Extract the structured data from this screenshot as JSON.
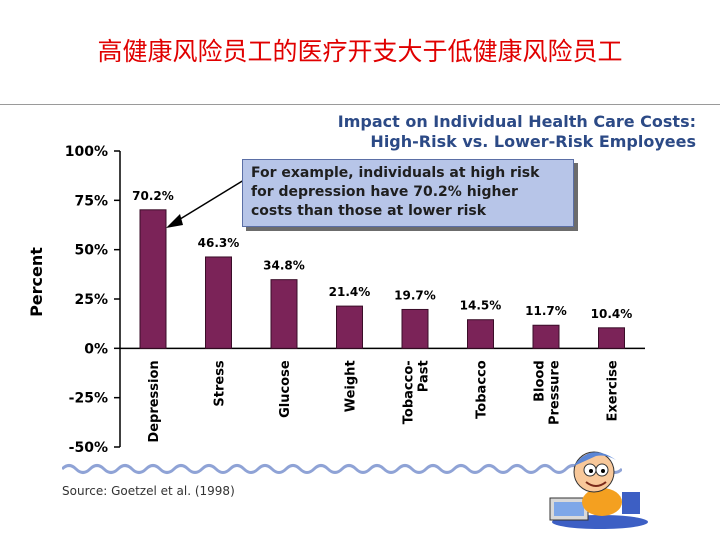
{
  "slide": {
    "title": "高健康风险员工的医疗开支大于低健康风险员工"
  },
  "chart_data": {
    "type": "bar",
    "title_lines": [
      "Impact on Individual Health Care Costs:",
      "High-Risk vs. Lower-Risk Employees"
    ],
    "ylabel": "Percent",
    "xlabel": "",
    "ylim": [
      -50,
      100
    ],
    "yticks": [
      100,
      75,
      50,
      25,
      0,
      -25,
      -50
    ],
    "ytick_labels": [
      "100%",
      "75%",
      "50%",
      "25%",
      "0%",
      "-25%",
      "-50%"
    ],
    "categories": [
      [
        "Depression"
      ],
      [
        "Stress"
      ],
      [
        "Glucose"
      ],
      [
        "Weight"
      ],
      [
        "Tobacco-",
        "Past"
      ],
      [
        "Tobacco"
      ],
      [
        "Blood",
        "Pressure"
      ],
      [
        "Exercise"
      ]
    ],
    "values": [
      70.2,
      46.3,
      34.8,
      21.4,
      19.7,
      14.5,
      11.7,
      10.4
    ],
    "value_labels": [
      "70.2%",
      "46.3%",
      "34.8%",
      "21.4%",
      "19.7%",
      "14.5%",
      "11.7%",
      "10.4%"
    ],
    "bar_color": "#7b2358",
    "grid": false,
    "annotation": {
      "lines": [
        "For example, individuals at high risk",
        "for depression have 70.2% higher",
        "costs than those at lower risk"
      ],
      "points_to": "Depression"
    },
    "source": "Source: Goetzel et al. (1998)"
  },
  "colors": {
    "title_red": "#e00000",
    "chart_title_blue": "#2c4a86",
    "callout_fill": "#b7c5e8"
  },
  "decor": {
    "mascot": "cartoon-mascot-at-computer",
    "wave": "blue-wave-divider"
  }
}
